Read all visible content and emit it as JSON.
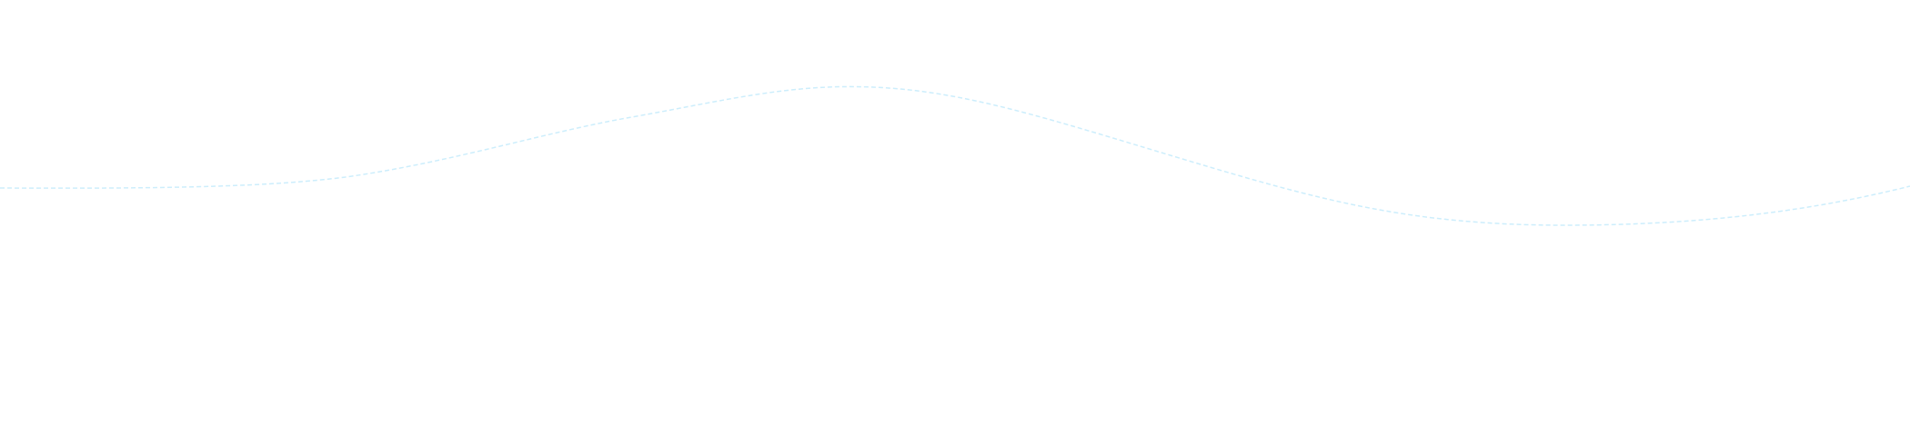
{
  "decoration": {
    "wave_color": "#cdeefc"
  }
}
